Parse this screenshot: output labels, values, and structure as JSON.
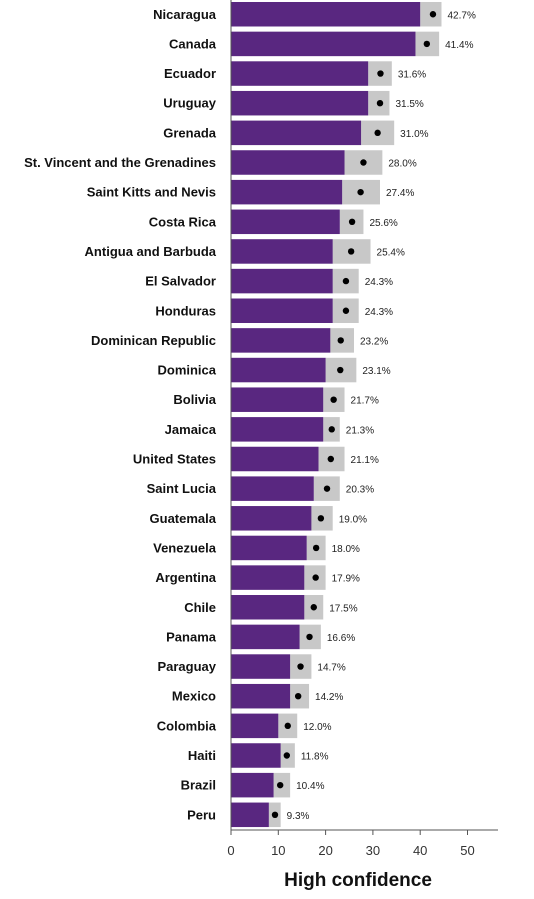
{
  "chart_data": {
    "type": "bar",
    "orientation": "horizontal",
    "xlabel": "High confidence",
    "xlim": [
      0,
      55
    ],
    "xticks": [
      0,
      10,
      20,
      30,
      40,
      50
    ],
    "categories": [
      "Nicaragua",
      "Canada",
      "Ecuador",
      "Uruguay",
      "Grenada",
      "St. Vincent and the Grenadines",
      "Saint Kitts and Nevis",
      "Costa Rica",
      "Antigua and Barbuda",
      "El Salvador",
      "Honduras",
      "Dominican Republic",
      "Dominica",
      "Bolivia",
      "Jamaica",
      "United States",
      "Saint Lucia",
      "Guatemala",
      "Venezuela",
      "Argentina",
      "Chile",
      "Panama",
      "Paraguay",
      "Mexico",
      "Colombia",
      "Haiti",
      "Brazil",
      "Peru"
    ],
    "values": [
      42.7,
      41.4,
      31.6,
      31.5,
      31.0,
      28.0,
      27.4,
      25.6,
      25.4,
      24.3,
      24.3,
      23.2,
      23.1,
      21.7,
      21.3,
      21.1,
      20.3,
      19.0,
      18.0,
      17.9,
      17.5,
      16.6,
      14.7,
      14.2,
      12.0,
      11.8,
      10.4,
      9.3
    ],
    "value_labels": [
      "42.7%",
      "41.4%",
      "31.6%",
      "31.5%",
      "31.0%",
      "28.0%",
      "27.4%",
      "25.6%",
      "25.4%",
      "24.3%",
      "24.3%",
      "23.2%",
      "23.1%",
      "21.7%",
      "21.3%",
      "21.1%",
      "20.3%",
      "19.0%",
      "18.0%",
      "17.9%",
      "17.5%",
      "16.6%",
      "14.7%",
      "14.2%",
      "12.0%",
      "11.8%",
      "10.4%",
      "9.3%"
    ],
    "ci_lower": [
      40,
      39,
      29,
      29,
      27.5,
      24,
      23.5,
      23,
      21.5,
      21.5,
      21.5,
      21,
      20,
      19.5,
      19.5,
      18.5,
      17.5,
      17,
      16,
      15.5,
      15.5,
      14.5,
      12.5,
      12.5,
      10,
      10.5,
      9,
      8
    ],
    "ci_upper": [
      44.5,
      44,
      34,
      33.5,
      34.5,
      32,
      31.5,
      28,
      29.5,
      27,
      27,
      26,
      26.5,
      24,
      23,
      24,
      23,
      21.5,
      20,
      20,
      19.5,
      19,
      17,
      16.5,
      14,
      13.5,
      12.5,
      10.5
    ],
    "colors": {
      "bar": "#592780",
      "ci": "#c8c8c8",
      "marker": "#000000",
      "axis": "#555555"
    },
    "grid": false,
    "legend": "none"
  }
}
